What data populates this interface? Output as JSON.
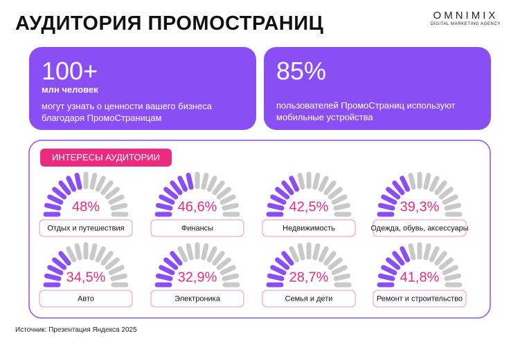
{
  "title": "АУДИТОРИЯ ПРОМОСТРАНИЦ",
  "logo": {
    "name": "OMNIMIX",
    "tagline": "DIGITAL MARKETING AGENCY"
  },
  "cards": [
    {
      "value": "100+",
      "unit": "млн человек",
      "text": "могут узнать о ценности вашего бизнеса благодаря ПромоСтраницам"
    },
    {
      "value": "85%",
      "text": "пользователей ПромоСтраниц используют мобильные устройства"
    }
  ],
  "chart_data": {
    "type": "gauge",
    "title": "ИНТЕРЕСЫ АУДИТОРИИ",
    "categories": [
      "Отдых и путешествия",
      "Финансы",
      "Недвижимость",
      "Одежда, обувь, аксессуары",
      "Авто",
      "Электроника",
      "Семья и дети",
      "Ремонт и строительство"
    ],
    "values": [
      48,
      46.6,
      42.5,
      39.3,
      34.5,
      32.9,
      28.7,
      41.8
    ],
    "value_labels": [
      "48%",
      "46,6%",
      "42,5%",
      "39,3%",
      "34,5%",
      "32,9%",
      "28,7%",
      "41,8%"
    ],
    "ylim": [
      0,
      100
    ],
    "color": "#8b4ef5",
    "track_color": "#c9c9c9",
    "label_color": "#ec2a80"
  },
  "source": "Источник: Презентация Яндекса 2025"
}
